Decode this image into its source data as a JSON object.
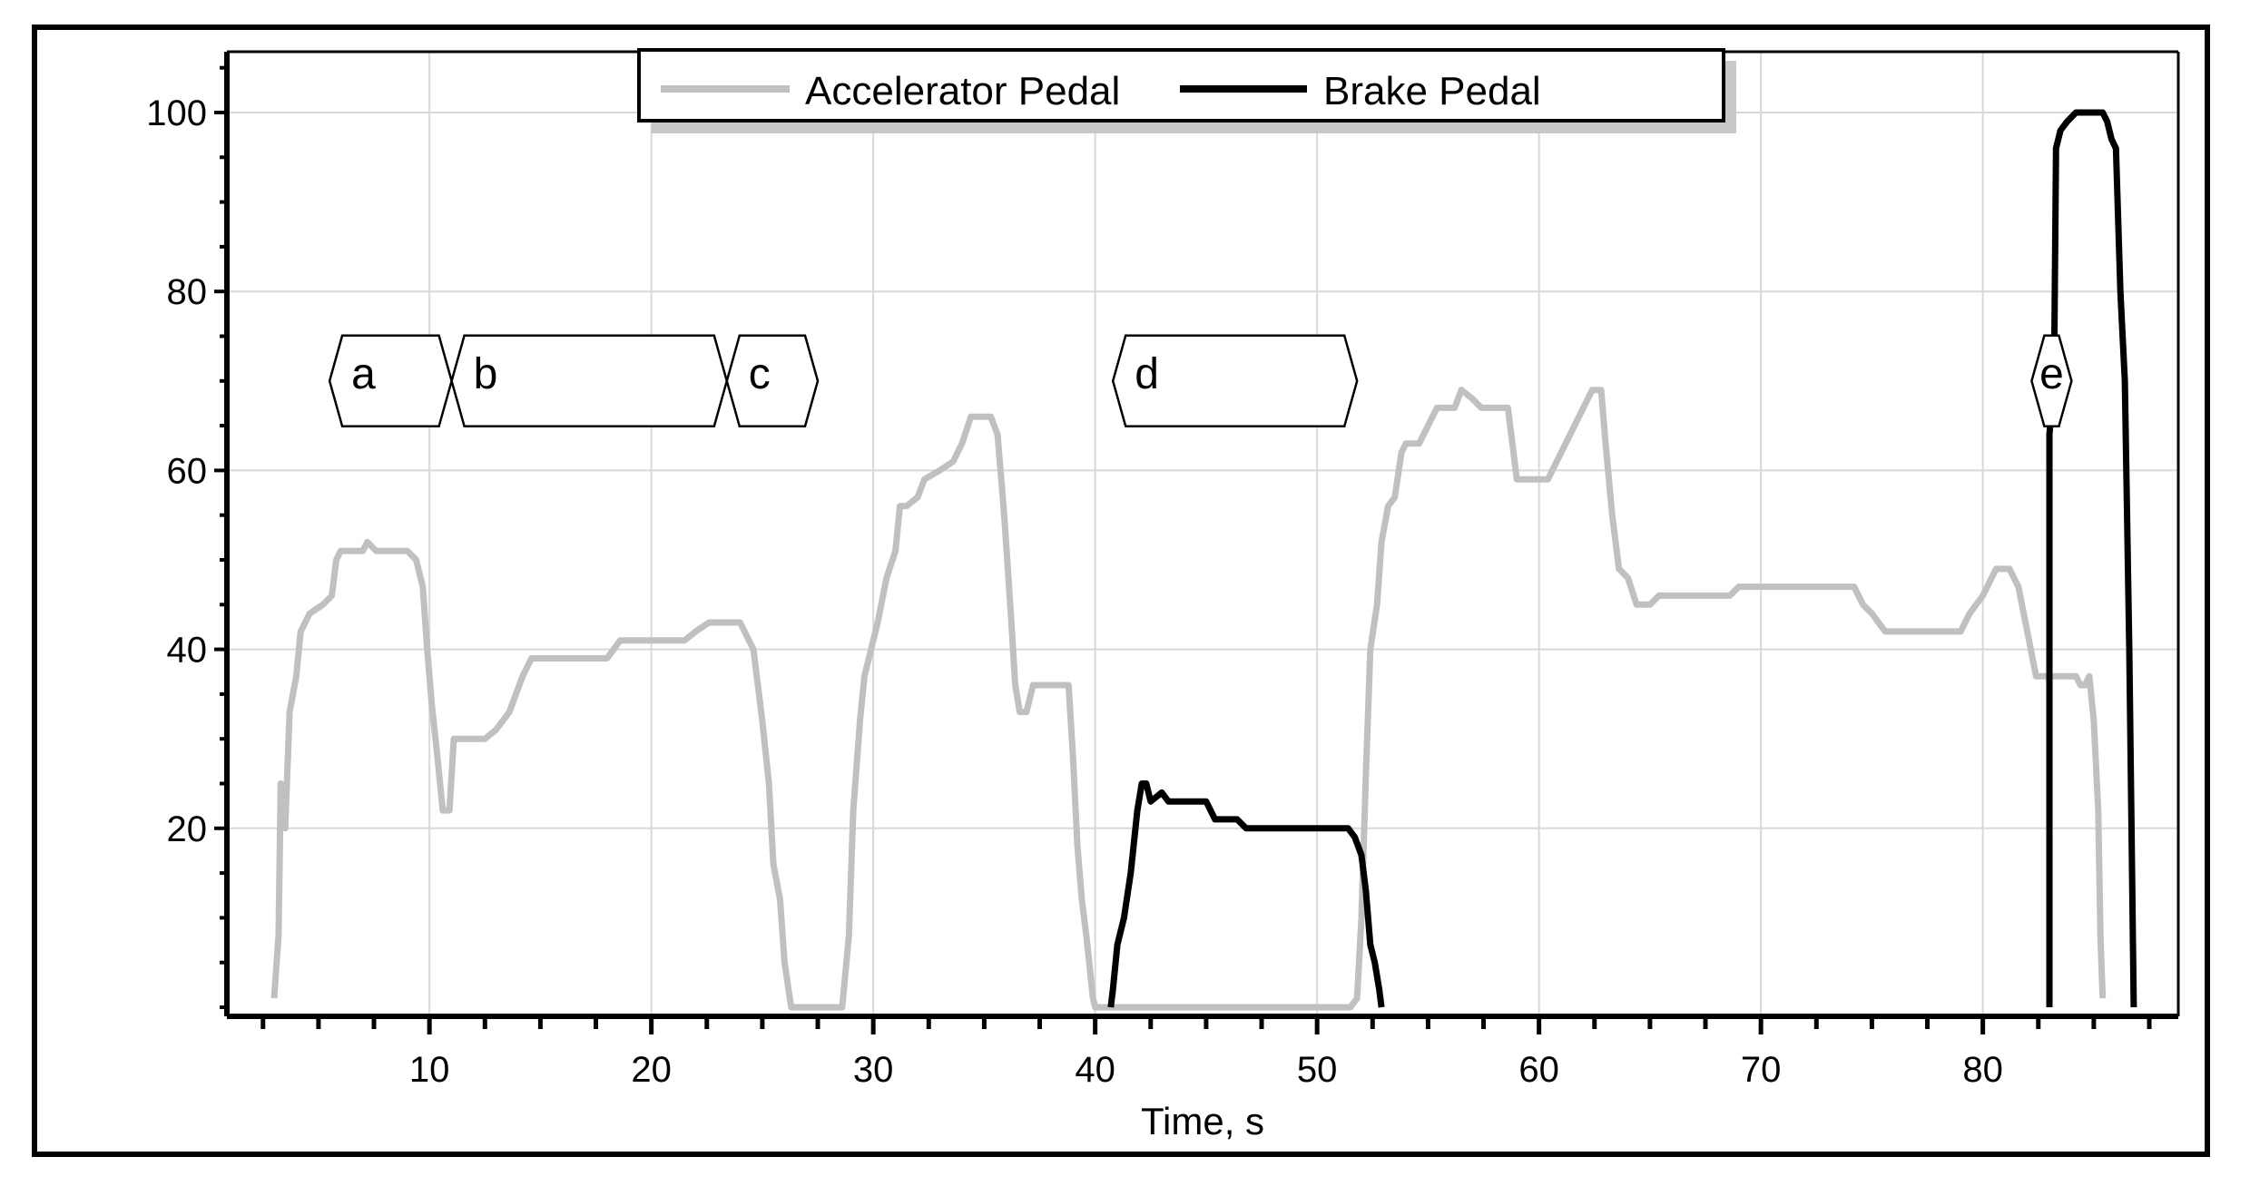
{
  "chart_data": {
    "type": "line",
    "xlabel": "Time, s",
    "ylabel": "",
    "xlim": [
      0,
      88
    ],
    "ylim": [
      -1,
      108
    ],
    "x_ticks": [
      10,
      20,
      30,
      40,
      50,
      60,
      70,
      80
    ],
    "y_ticks": [
      20,
      40,
      60,
      80,
      100
    ],
    "grid": true,
    "legend": "top-center",
    "series": [
      {
        "name": "Accelerator Pedal",
        "color": "#c0c0c0",
        "points": [
          [
            3.0,
            1
          ],
          [
            3.2,
            8
          ],
          [
            3.3,
            25
          ],
          [
            3.5,
            20
          ],
          [
            3.7,
            33
          ],
          [
            4.0,
            37
          ],
          [
            4.2,
            42
          ],
          [
            4.6,
            44
          ],
          [
            5.2,
            45
          ],
          [
            5.6,
            46
          ],
          [
            5.8,
            50
          ],
          [
            6.0,
            51
          ],
          [
            7.0,
            51
          ],
          [
            7.2,
            52
          ],
          [
            7.6,
            51
          ],
          [
            9.0,
            51
          ],
          [
            9.4,
            50
          ],
          [
            9.7,
            47
          ],
          [
            9.9,
            40
          ],
          [
            10.1,
            34
          ],
          [
            10.4,
            27
          ],
          [
            10.6,
            22
          ],
          [
            10.9,
            22
          ],
          [
            11.1,
            30
          ],
          [
            12.5,
            30
          ],
          [
            13.0,
            31
          ],
          [
            13.6,
            33
          ],
          [
            14.2,
            37
          ],
          [
            14.6,
            39
          ],
          [
            18.0,
            39
          ],
          [
            18.6,
            41
          ],
          [
            21.5,
            41
          ],
          [
            22.0,
            42
          ],
          [
            22.6,
            43
          ],
          [
            24.0,
            43
          ],
          [
            24.6,
            40
          ],
          [
            25.0,
            32
          ],
          [
            25.3,
            25
          ],
          [
            25.5,
            16
          ],
          [
            25.8,
            12
          ],
          [
            26.0,
            5
          ],
          [
            26.3,
            0
          ],
          [
            28.6,
            0
          ],
          [
            28.9,
            8
          ],
          [
            29.1,
            22
          ],
          [
            29.4,
            32
          ],
          [
            29.6,
            37
          ],
          [
            29.9,
            40
          ],
          [
            30.2,
            43
          ],
          [
            30.6,
            48
          ],
          [
            31.0,
            51
          ],
          [
            31.2,
            56
          ],
          [
            31.5,
            56
          ],
          [
            32.0,
            57
          ],
          [
            32.3,
            59
          ],
          [
            33.0,
            60
          ],
          [
            33.6,
            61
          ],
          [
            34.0,
            63
          ],
          [
            34.4,
            66
          ],
          [
            35.3,
            66
          ],
          [
            35.6,
            64
          ],
          [
            35.9,
            55
          ],
          [
            36.2,
            44
          ],
          [
            36.4,
            36
          ],
          [
            36.6,
            33
          ],
          [
            36.9,
            33
          ],
          [
            37.2,
            36
          ],
          [
            38.8,
            36
          ],
          [
            39.0,
            28
          ],
          [
            39.2,
            18
          ],
          [
            39.4,
            12
          ],
          [
            39.6,
            8
          ],
          [
            39.9,
            1
          ],
          [
            40.0,
            0
          ],
          [
            51.5,
            0
          ],
          [
            51.8,
            1
          ],
          [
            52.0,
            10
          ],
          [
            52.2,
            26
          ],
          [
            52.4,
            40
          ],
          [
            52.7,
            45
          ],
          [
            52.9,
            52
          ],
          [
            53.2,
            56
          ],
          [
            53.5,
            57
          ],
          [
            53.8,
            62
          ],
          [
            54.0,
            63
          ],
          [
            54.6,
            63
          ],
          [
            55.0,
            65
          ],
          [
            55.4,
            67
          ],
          [
            56.2,
            67
          ],
          [
            56.5,
            69
          ],
          [
            57.0,
            68
          ],
          [
            57.4,
            67
          ],
          [
            58.6,
            67
          ],
          [
            58.8,
            63
          ],
          [
            59.0,
            59
          ],
          [
            60.4,
            59
          ],
          [
            61.0,
            62
          ],
          [
            61.6,
            65
          ],
          [
            62.0,
            67
          ],
          [
            62.4,
            69
          ],
          [
            62.8,
            69
          ],
          [
            63.0,
            63
          ],
          [
            63.3,
            55
          ],
          [
            63.6,
            49
          ],
          [
            64.0,
            48
          ],
          [
            64.4,
            45
          ],
          [
            65.0,
            45
          ],
          [
            65.4,
            46
          ],
          [
            68.6,
            46
          ],
          [
            69.0,
            47
          ],
          [
            74.2,
            47
          ],
          [
            74.6,
            45
          ],
          [
            75.0,
            44
          ],
          [
            75.6,
            42
          ],
          [
            79.0,
            42
          ],
          [
            79.4,
            44
          ],
          [
            80.0,
            46
          ],
          [
            80.6,
            49
          ],
          [
            81.2,
            49
          ],
          [
            81.6,
            47
          ],
          [
            82.0,
            42
          ],
          [
            82.4,
            37
          ],
          [
            84.2,
            37
          ],
          [
            84.4,
            36
          ],
          [
            84.6,
            36
          ],
          [
            84.8,
            37
          ],
          [
            85.0,
            32
          ],
          [
            85.2,
            22
          ],
          [
            85.3,
            8
          ],
          [
            85.4,
            1
          ]
        ]
      },
      {
        "name": "Brake Pedal",
        "color": "#000000",
        "points": [
          [
            40.7,
            0
          ],
          [
            40.8,
            2
          ],
          [
            41.0,
            7
          ],
          [
            41.3,
            10
          ],
          [
            41.6,
            15
          ],
          [
            41.9,
            22
          ],
          [
            42.1,
            25
          ],
          [
            42.3,
            25
          ],
          [
            42.5,
            23
          ],
          [
            43.0,
            24
          ],
          [
            43.3,
            23
          ],
          [
            45.0,
            23
          ],
          [
            45.4,
            21
          ],
          [
            46.4,
            21
          ],
          [
            46.8,
            20
          ],
          [
            51.4,
            20
          ],
          [
            51.7,
            19
          ],
          [
            52.0,
            17
          ],
          [
            52.2,
            13
          ],
          [
            52.4,
            7
          ],
          [
            52.6,
            5
          ],
          [
            52.8,
            2
          ],
          [
            52.9,
            0
          ]
        ],
        "extra_points": [
          [
            85.6,
            0
          ],
          [
            85.6,
            64
          ],
          [
            85.7,
            67
          ],
          [
            85.8,
            68
          ],
          [
            85.9,
            96
          ],
          [
            86.1,
            98
          ],
          [
            86.4,
            99
          ],
          [
            86.8,
            100
          ],
          [
            88.0,
            100
          ],
          [
            88.2,
            99
          ],
          [
            88.4,
            97
          ],
          [
            88.6,
            96
          ],
          [
            88.8,
            80
          ],
          [
            89.0,
            70
          ],
          [
            89.2,
            40
          ],
          [
            89.4,
            0
          ]
        ]
      }
    ],
    "annotations": [
      {
        "label": "a",
        "x_start": 5.5,
        "x_end": 11.0,
        "y": 70
      },
      {
        "label": "b",
        "x_start": 11.0,
        "x_end": 23.4,
        "y": 70
      },
      {
        "label": "c",
        "x_start": 23.4,
        "x_end": 27.5,
        "y": 70
      },
      {
        "label": "d",
        "x_start": 40.8,
        "x_end": 51.8,
        "y": 70
      },
      {
        "label": "e",
        "x_start": 82.2,
        "x_end": 84.0,
        "y": 70
      }
    ]
  }
}
